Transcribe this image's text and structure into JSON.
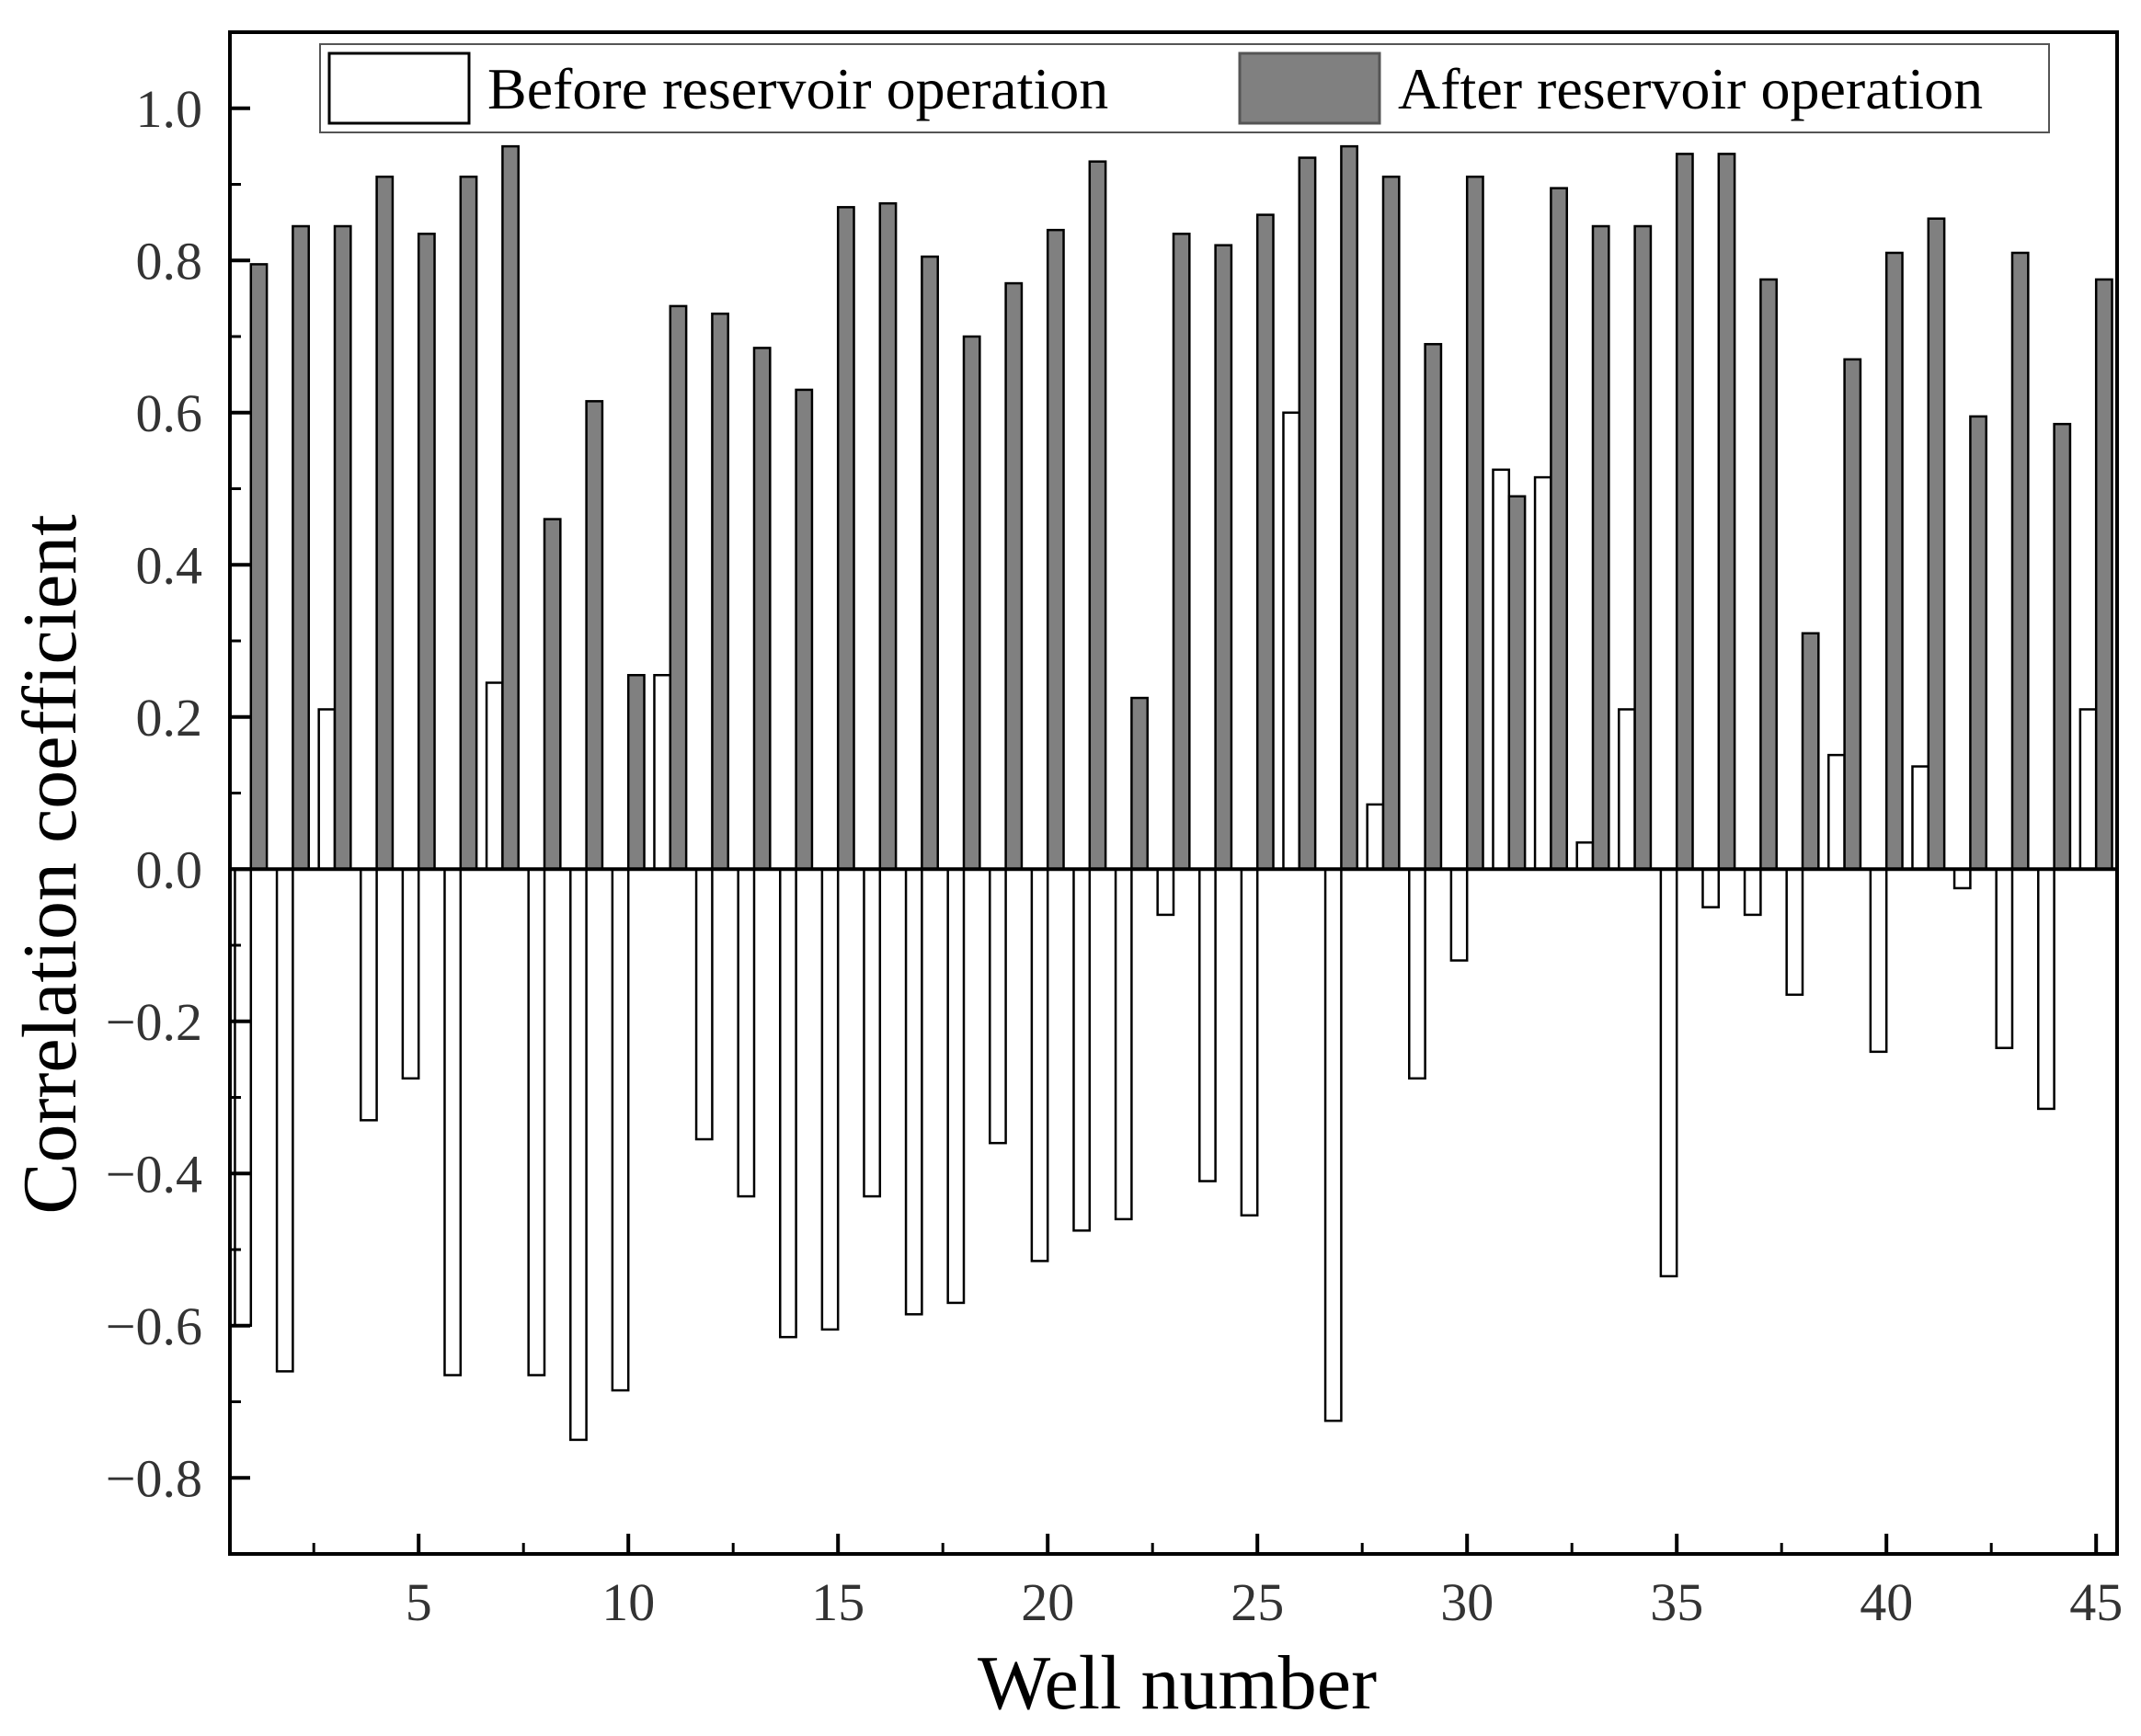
{
  "chart_data": {
    "type": "bar",
    "title": "",
    "xlabel": "Well number",
    "ylabel": "Correlation coefficient",
    "xlim": [
      0.5,
      45.5
    ],
    "ylim": [
      -0.9,
      1.1
    ],
    "x_ticks": [
      5,
      10,
      15,
      20,
      25,
      30,
      35,
      40,
      45
    ],
    "x_tick_labels": [
      "5",
      "10",
      "15",
      "20",
      "25",
      "30",
      "35",
      "40",
      "45"
    ],
    "y_ticks": [
      -0.8,
      -0.6,
      -0.4,
      -0.2,
      0.0,
      0.2,
      0.4,
      0.6,
      0.8,
      1.0
    ],
    "y_tick_labels": [
      "−0.8",
      "−0.6",
      "−0.4",
      "−0.2",
      "0.0",
      "0.2",
      "0.4",
      "0.6",
      "0.8",
      "1.0"
    ],
    "grid": false,
    "legend_position": "top",
    "categories": [
      1,
      2,
      3,
      4,
      5,
      6,
      7,
      8,
      9,
      10,
      11,
      12,
      13,
      14,
      15,
      16,
      17,
      18,
      19,
      20,
      21,
      22,
      23,
      24,
      25,
      26,
      27,
      28,
      29,
      30,
      31,
      32,
      33,
      34,
      35,
      36,
      37,
      38,
      39,
      40,
      41,
      42,
      43,
      44,
      45
    ],
    "series": [
      {
        "name": "Before reservoir operation",
        "color": "#ffffff",
        "values": [
          -0.6,
          -0.66,
          0.21,
          -0.33,
          -0.275,
          -0.665,
          0.245,
          -0.665,
          -0.75,
          -0.685,
          0.255,
          -0.355,
          -0.43,
          -0.615,
          -0.605,
          -0.43,
          -0.585,
          -0.57,
          -0.36,
          -0.515,
          -0.475,
          -0.46,
          -0.06,
          -0.41,
          -0.455,
          0.6,
          -0.725,
          0.085,
          -0.275,
          -0.12,
          0.525,
          0.515,
          0.035,
          0.21,
          -0.535,
          -0.05,
          -0.06,
          -0.165,
          0.15,
          -0.24,
          0.135,
          -0.025,
          -0.235,
          -0.315,
          0.21
        ]
      },
      {
        "name": "After reservoir operation",
        "color": "#808080",
        "values": [
          0.795,
          0.845,
          0.845,
          0.91,
          0.835,
          0.91,
          0.95,
          0.46,
          0.615,
          0.255,
          0.74,
          0.73,
          0.685,
          0.63,
          0.87,
          0.875,
          0.805,
          0.7,
          0.77,
          0.84,
          0.93,
          0.225,
          0.835,
          0.82,
          0.86,
          0.935,
          0.95,
          0.91,
          0.69,
          0.91,
          0.49,
          0.895,
          0.845,
          0.845,
          0.94,
          0.94,
          0.775,
          0.31,
          0.67,
          0.81,
          0.855,
          0.595,
          0.81,
          0.585,
          0.775
        ]
      }
    ]
  }
}
